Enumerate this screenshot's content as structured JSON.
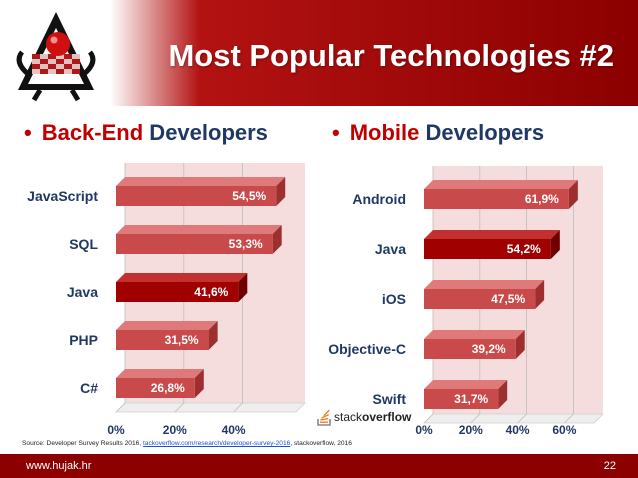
{
  "slide": {
    "title": "Most Popular Technologies #2",
    "footer_site": "www.hujak.hr",
    "page_number": "22",
    "source_prefix": "Source: Developer Survey Results 2016,",
    "source_link": "tackoverflow.com/research/developer-survey-2016",
    "source_suffix": ", stackoverflow, 2016",
    "stackoverflow_logo_light": "stack",
    "stackoverflow_logo_bold": "overflow"
  },
  "sections": {
    "backend": {
      "accent": "Back-End",
      "rest": " Developers"
    },
    "mobile": {
      "accent": "Mobile",
      "rest": " Developers"
    }
  },
  "colors": {
    "bar": "#c94a4a",
    "bar_highlight": "#a00000",
    "plot_bg": "#f6dddd",
    "header_red": "#8c0000",
    "label_blue": "#1f3864",
    "accent_red": "#c00000"
  },
  "chart_data": [
    {
      "type": "bar",
      "orientation": "horizontal",
      "categories": [
        "JavaScript",
        "SQL",
        "Java",
        "PHP",
        "C#"
      ],
      "values": [
        54.5,
        53.3,
        41.6,
        31.5,
        26.8
      ],
      "data_labels": [
        "54,5%",
        "53,3%",
        "41,6%",
        "31,5%",
        "26,8%"
      ],
      "highlight": "Java",
      "xlim": [
        0,
        60
      ],
      "x_ticks": [
        "0%",
        "20%",
        "40%"
      ],
      "grid": true
    },
    {
      "type": "bar",
      "orientation": "horizontal",
      "categories": [
        "Android",
        "Java",
        "iOS",
        "Objective-C",
        "Swift"
      ],
      "values": [
        61.9,
        54.2,
        47.5,
        39.2,
        31.7
      ],
      "data_labels": [
        "61,9%",
        "54,2%",
        "47,5%",
        "39,2%",
        "31,7%"
      ],
      "highlight": "Java",
      "xlim": [
        0,
        60
      ],
      "x_ticks": [
        "0%",
        "20%",
        "40%",
        "60%"
      ],
      "grid": true
    }
  ]
}
